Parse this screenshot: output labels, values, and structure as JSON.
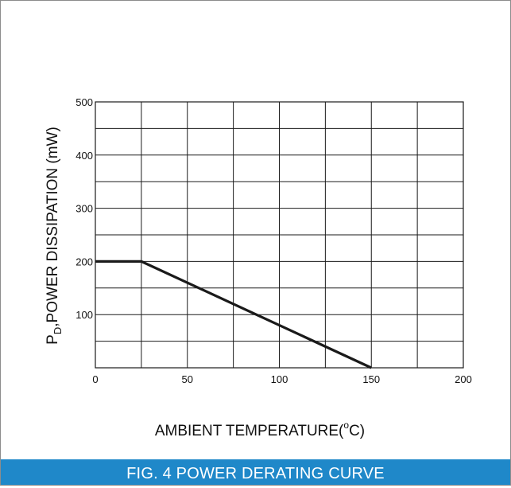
{
  "chart_data": {
    "type": "line",
    "x": [
      0,
      25,
      150
    ],
    "series": [
      {
        "values": [
          200,
          200,
          0
        ]
      }
    ],
    "xlim": [
      0,
      200
    ],
    "ylim": [
      0,
      500
    ],
    "x_ticks": [
      0,
      50,
      100,
      150,
      200
    ],
    "y_ticks": [
      100,
      200,
      300,
      400,
      500
    ],
    "x_tick_labels": [
      "0",
      "50",
      "100",
      "150",
      "200"
    ],
    "y_tick_labels": [
      "100",
      "200",
      "300",
      "400",
      "500"
    ],
    "xlabel": {
      "main": "AMBIENT TEMPERATURE(",
      "unit_super": "o",
      "unit_tail": "C)"
    },
    "ylabel": {
      "p": "P",
      "sub": "D",
      "rest": ",POWER DISSIPATION (mW)"
    },
    "grid": true,
    "grid_minor_x_step": 25,
    "grid_minor_y_step": 50,
    "line_color": "#1a1a1a",
    "grid_color": "#1a1a1a"
  },
  "caption": "FIG. 4 POWER DERATING CURVE",
  "colors": {
    "caption_bg": "#1f88c9",
    "caption_text": "#ffffff"
  }
}
